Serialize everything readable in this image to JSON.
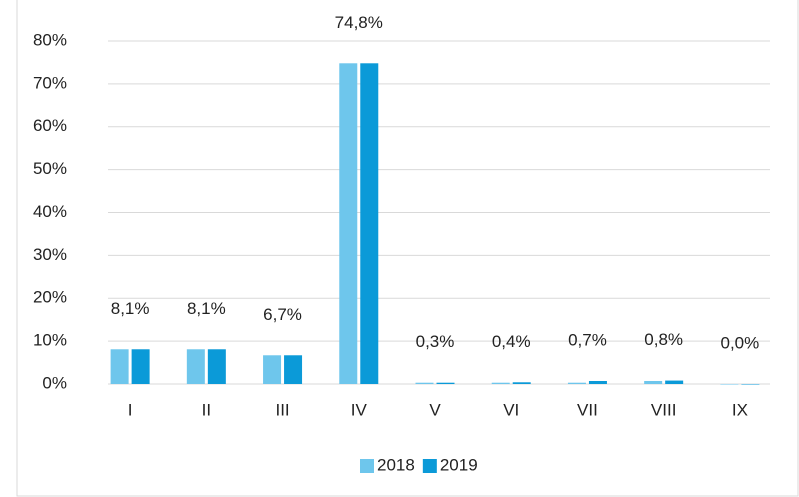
{
  "chart_data": {
    "type": "bar",
    "categories": [
      "I",
      "II",
      "III",
      "IV",
      "V",
      "VI",
      "VII",
      "VIII",
      "IX"
    ],
    "series": [
      {
        "name": "2018",
        "color": "#6ec6ec",
        "values": [
          8.1,
          8.1,
          6.7,
          74.8,
          0.3,
          0.3,
          0.3,
          0.7,
          0.0
        ]
      },
      {
        "name": "2019",
        "color": "#0b9ad8",
        "values": [
          8.1,
          8.1,
          6.7,
          74.8,
          0.3,
          0.4,
          0.7,
          0.8,
          0.0
        ],
        "value_labels": [
          "8,1%",
          "8,1%",
          "6,7%",
          "74,8%",
          "0,3%",
          "0,4%",
          "0,7%",
          "0,8%",
          "0,0%"
        ]
      }
    ],
    "ylim": [
      0,
      80
    ],
    "yticks": [
      {
        "value": 0,
        "label": "0%"
      },
      {
        "value": 10,
        "label": "10%"
      },
      {
        "value": 20,
        "label": "20%"
      },
      {
        "value": 30,
        "label": "30%"
      },
      {
        "value": 40,
        "label": "40%"
      },
      {
        "value": 50,
        "label": "50%"
      },
      {
        "value": 60,
        "label": "60%"
      },
      {
        "value": 70,
        "label": "70%"
      },
      {
        "value": 80,
        "label": "80%"
      }
    ],
    "grid": true,
    "legend": "bottom"
  }
}
